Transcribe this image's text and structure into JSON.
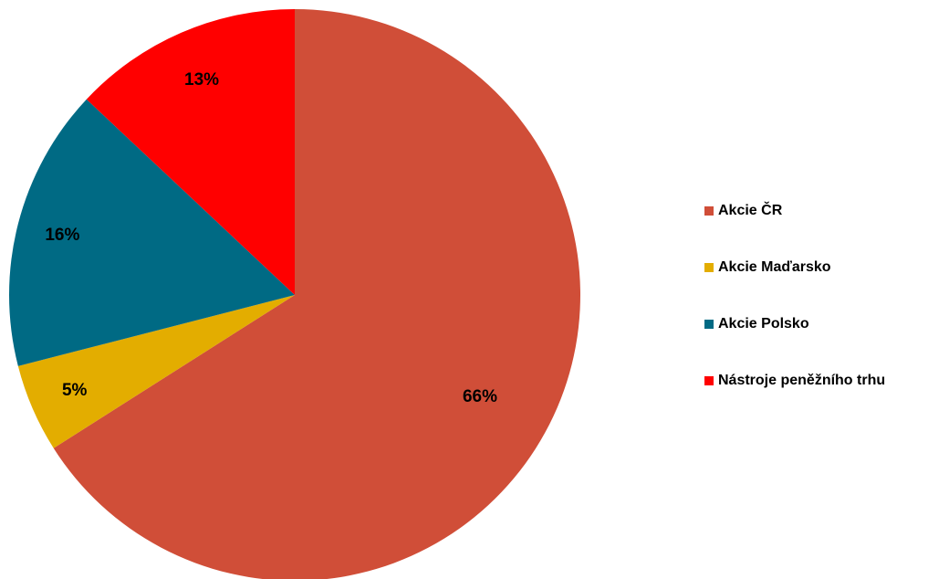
{
  "chart_data": {
    "type": "pie",
    "start_angle": "12 o'clock",
    "direction": "clockwise",
    "legend_position": "right",
    "slices": [
      {
        "label": "Akcie ČR",
        "value": 66,
        "display": "66%",
        "color": "#d04e38"
      },
      {
        "label": "Akcie Maďarsko",
        "value": 5,
        "display": "5%",
        "color": "#e3ad00"
      },
      {
        "label": "Akcie Polsko",
        "value": 16,
        "display": "16%",
        "color": "#006a84"
      },
      {
        "label": "Nástroje peněžního trhu",
        "value": 13,
        "display": "13%",
        "color": "#ff0000"
      }
    ]
  }
}
